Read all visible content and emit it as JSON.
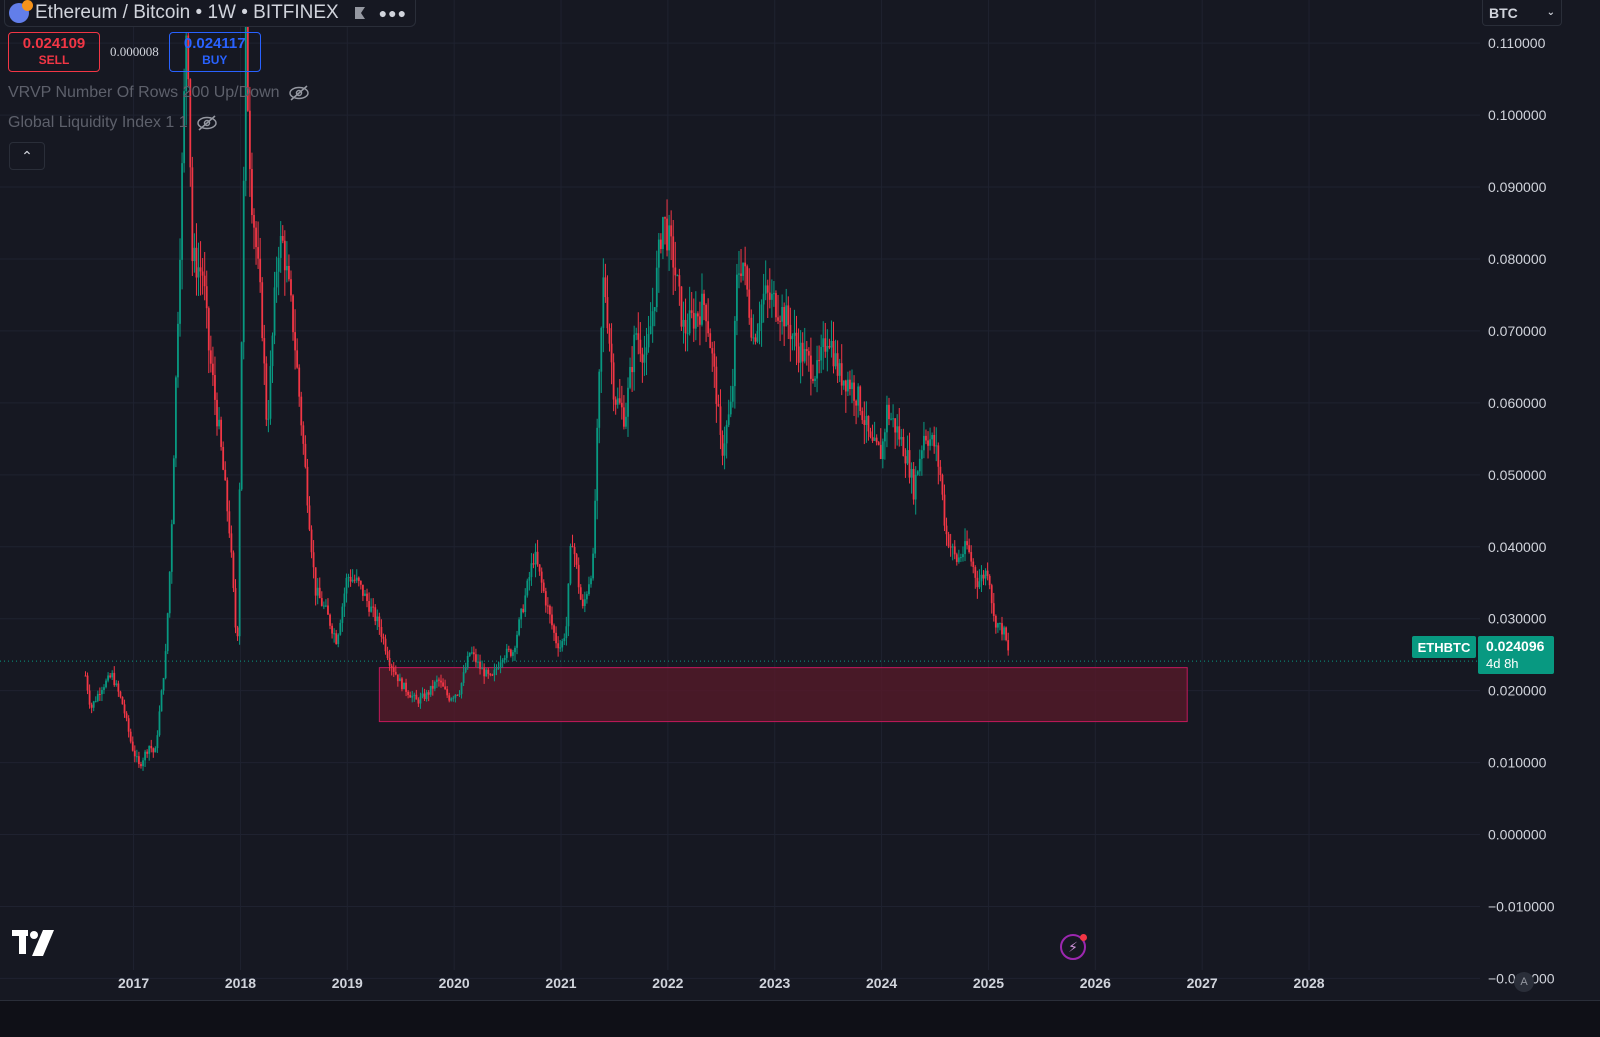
{
  "header": {
    "symbol_title": "Ethereum / Bitcoin • 1W • BITFINEX",
    "icons": [
      "ethereum-bitcoin-logo",
      "flag-icon",
      "more-icon"
    ]
  },
  "trade": {
    "sell_price": "0.024109",
    "sell_label": "SELL",
    "spread": "0.000008",
    "buy_price": "0.024117",
    "buy_label": "BUY"
  },
  "indicators": [
    {
      "label": "VRVP Number Of Rows 200 Up/Down",
      "icon": "eye-off-icon"
    },
    {
      "label": "Global Liquidity Index 1 1",
      "icon": "eye-off-icon"
    }
  ],
  "currency": {
    "value": "BTC"
  },
  "price_label": {
    "symbol": "ETHBTC",
    "price": "0.024096",
    "countdown": "4d 8h"
  },
  "colors": {
    "background": "#161822",
    "up": "#089981",
    "down": "#f23645",
    "zone_fill": "#5a1a2a",
    "zone_border": "#c2185b"
  },
  "chart_data": {
    "type": "candlestick",
    "title": "Ethereum / Bitcoin • 1W • BITFINEX",
    "y_ticks": [
      "0.110000",
      "0.100000",
      "0.090000",
      "0.080000",
      "0.070000",
      "0.060000",
      "0.050000",
      "0.040000",
      "0.030000",
      "0.020000",
      "0.010000",
      "0.000000",
      "−0.010000",
      "−0.020000"
    ],
    "y_tick_values": [
      0.11,
      0.1,
      0.09,
      0.08,
      0.07,
      0.06,
      0.05,
      0.04,
      0.03,
      0.02,
      0.01,
      0.0,
      -0.01,
      -0.02
    ],
    "x_ticks": [
      "2017",
      "2018",
      "2019",
      "2020",
      "2021",
      "2022",
      "2023",
      "2024",
      "2025",
      "2026",
      "2027",
      "2028"
    ],
    "x_tick_values": [
      2017,
      2018,
      2019,
      2020,
      2021,
      2022,
      2023,
      2024,
      2025,
      2026,
      2027,
      2028
    ],
    "ylim": [
      -0.023,
      0.116
    ],
    "xlim": [
      2015.75,
      2029.6
    ],
    "current_price": 0.024096,
    "support_zone": {
      "x_start": 2019.3,
      "x_end": 2026.86,
      "y_low": 0.0157,
      "y_high": 0.0232
    },
    "price_path": [
      [
        2016.55,
        0.0221
      ],
      [
        2016.6,
        0.0175
      ],
      [
        2016.7,
        0.0205
      ],
      [
        2016.8,
        0.0221
      ],
      [
        2016.9,
        0.018
      ],
      [
        2016.98,
        0.0125
      ],
      [
        2017.05,
        0.0095
      ],
      [
        2017.15,
        0.0125
      ],
      [
        2017.2,
        0.011
      ],
      [
        2017.3,
        0.025
      ],
      [
        2017.35,
        0.04
      ],
      [
        2017.45,
        0.09
      ],
      [
        2017.5,
        0.116
      ],
      [
        2017.55,
        0.08
      ],
      [
        2017.65,
        0.078
      ],
      [
        2017.7,
        0.068
      ],
      [
        2017.8,
        0.056
      ],
      [
        2017.9,
        0.042
      ],
      [
        2017.97,
        0.025
      ],
      [
        2018.05,
        0.11
      ],
      [
        2018.1,
        0.09
      ],
      [
        2018.2,
        0.072
      ],
      [
        2018.25,
        0.056
      ],
      [
        2018.35,
        0.082
      ],
      [
        2018.4,
        0.082
      ],
      [
        2018.5,
        0.07
      ],
      [
        2018.6,
        0.052
      ],
      [
        2018.7,
        0.034
      ],
      [
        2018.8,
        0.031
      ],
      [
        2018.9,
        0.027
      ],
      [
        2019.0,
        0.036
      ],
      [
        2019.1,
        0.035
      ],
      [
        2019.2,
        0.032
      ],
      [
        2019.3,
        0.029
      ],
      [
        2019.4,
        0.024
      ],
      [
        2019.5,
        0.021
      ],
      [
        2019.65,
        0.0185
      ],
      [
        2019.75,
        0.0195
      ],
      [
        2019.85,
        0.0215
      ],
      [
        2019.95,
        0.019
      ],
      [
        2020.05,
        0.02
      ],
      [
        2020.15,
        0.0255
      ],
      [
        2020.25,
        0.023
      ],
      [
        2020.35,
        0.0215
      ],
      [
        2020.45,
        0.025
      ],
      [
        2020.55,
        0.0255
      ],
      [
        2020.65,
        0.032
      ],
      [
        2020.75,
        0.039
      ],
      [
        2020.85,
        0.033
      ],
      [
        2020.95,
        0.027
      ],
      [
        2021.0,
        0.026
      ],
      [
        2021.05,
        0.029
      ],
      [
        2021.1,
        0.042
      ],
      [
        2021.2,
        0.031
      ],
      [
        2021.3,
        0.038
      ],
      [
        2021.35,
        0.06
      ],
      [
        2021.4,
        0.078
      ],
      [
        2021.5,
        0.061
      ],
      [
        2021.6,
        0.058
      ],
      [
        2021.7,
        0.07
      ],
      [
        2021.8,
        0.066
      ],
      [
        2021.9,
        0.078
      ],
      [
        2021.95,
        0.086
      ],
      [
        2022.05,
        0.08
      ],
      [
        2022.15,
        0.07
      ],
      [
        2022.25,
        0.072
      ],
      [
        2022.35,
        0.074
      ],
      [
        2022.45,
        0.062
      ],
      [
        2022.5,
        0.053
      ],
      [
        2022.6,
        0.06
      ],
      [
        2022.65,
        0.078
      ],
      [
        2022.7,
        0.08
      ],
      [
        2022.8,
        0.069
      ],
      [
        2022.9,
        0.075
      ],
      [
        2023.0,
        0.074
      ],
      [
        2023.1,
        0.072
      ],
      [
        2023.2,
        0.068
      ],
      [
        2023.3,
        0.066
      ],
      [
        2023.4,
        0.064
      ],
      [
        2023.5,
        0.07
      ],
      [
        2023.6,
        0.064
      ],
      [
        2023.7,
        0.063
      ],
      [
        2023.8,
        0.06
      ],
      [
        2023.9,
        0.054
      ],
      [
        2024.0,
        0.053
      ],
      [
        2024.05,
        0.059
      ],
      [
        2024.15,
        0.056
      ],
      [
        2024.25,
        0.052
      ],
      [
        2024.3,
        0.048
      ],
      [
        2024.4,
        0.056
      ],
      [
        2024.5,
        0.054
      ],
      [
        2024.55,
        0.05
      ],
      [
        2024.6,
        0.042
      ],
      [
        2024.7,
        0.038
      ],
      [
        2024.8,
        0.04
      ],
      [
        2024.9,
        0.035
      ],
      [
        2025.0,
        0.037
      ],
      [
        2025.05,
        0.03
      ],
      [
        2025.15,
        0.028
      ],
      [
        2025.2,
        0.0241
      ]
    ]
  }
}
